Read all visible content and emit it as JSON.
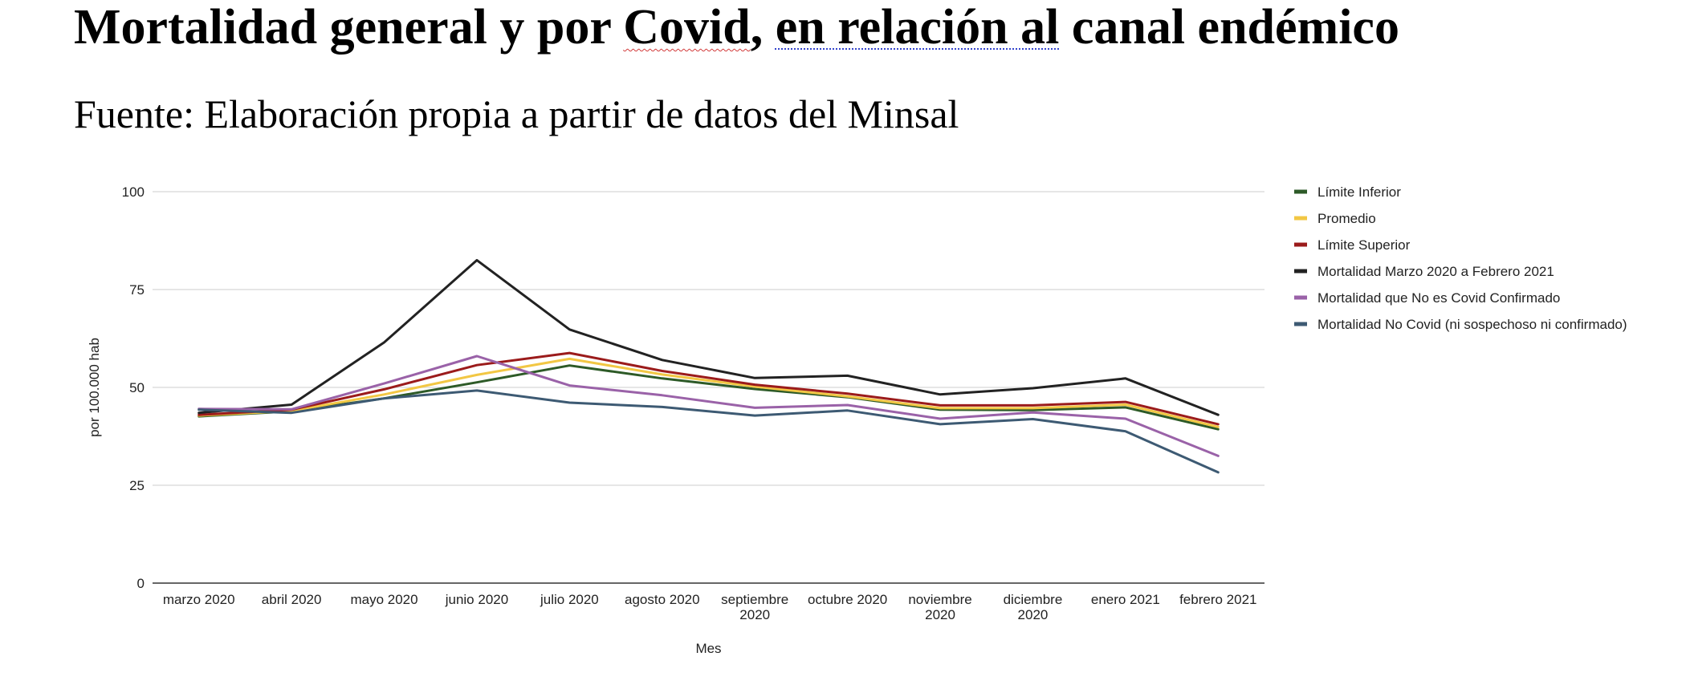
{
  "header": {
    "title_part1": "Mortalidad general y por ",
    "title_part2": "Covid",
    "title_part3": ", ",
    "title_part4": "en relación al",
    "title_part5": " canal endémico",
    "subtitle": "Fuente: Elaboración propia a partir de datos del Minsal"
  },
  "chart_data": {
    "type": "line",
    "title": "Mortalidad general y por Covid, en relación al canal endémico",
    "xlabel": "Mes",
    "ylabel": "por 100.000 hab",
    "ylim": [
      0,
      100
    ],
    "yticks": [
      "0",
      "25",
      "50",
      "75",
      "100"
    ],
    "grid": true,
    "legend_position": "right",
    "categories": [
      [
        "marzo 2020"
      ],
      [
        "abril 2020"
      ],
      [
        "mayo 2020"
      ],
      [
        "junio 2020"
      ],
      [
        "julio 2020"
      ],
      [
        "agosto 2020"
      ],
      [
        "septiembre",
        "2020"
      ],
      [
        "octubre 2020"
      ],
      [
        "noviembre",
        "2020"
      ],
      [
        "diciembre",
        "2020"
      ],
      [
        "enero 2021"
      ],
      [
        "febrero 2021"
      ]
    ],
    "series": [
      {
        "name": "Límite Inferior",
        "color": "#2d5a27",
        "values": [
          42.6,
          43.9,
          47.2,
          51.3,
          55.6,
          52.3,
          49.6,
          47.5,
          44.3,
          44.2,
          44.9,
          39.3
        ]
      },
      {
        "name": "Promedio",
        "color": "#f2c744",
        "values": [
          42.8,
          44.0,
          48.2,
          53.2,
          57.3,
          53.3,
          50.2,
          47.7,
          44.7,
          44.7,
          45.6,
          39.9
        ]
      },
      {
        "name": "Límite Superior",
        "color": "#9b1b1b",
        "values": [
          43.0,
          44.3,
          49.5,
          55.7,
          58.8,
          54.2,
          50.7,
          48.4,
          45.4,
          45.4,
          46.3,
          40.6
        ]
      },
      {
        "name": "Mortalidad Marzo 2020 a Febrero 2021",
        "color": "#222222",
        "values": [
          43.5,
          45.6,
          61.5,
          82.5,
          64.8,
          57.0,
          52.4,
          53.0,
          48.2,
          49.8,
          52.3,
          43.0
        ]
      },
      {
        "name": "Mortalidad que No es Covid Confirmado",
        "color": "#9a62a8",
        "values": [
          44.5,
          44.4,
          51.0,
          58.0,
          50.5,
          48.0,
          44.8,
          45.5,
          42.0,
          43.6,
          42.0,
          32.5
        ]
      },
      {
        "name": "Mortalidad No Covid (ni sospechoso ni confirmado)",
        "color": "#3d5a73",
        "values": [
          44.3,
          43.5,
          47.2,
          49.2,
          46.1,
          45.0,
          42.8,
          44.1,
          40.6,
          41.9,
          38.8,
          28.3
        ]
      }
    ]
  }
}
